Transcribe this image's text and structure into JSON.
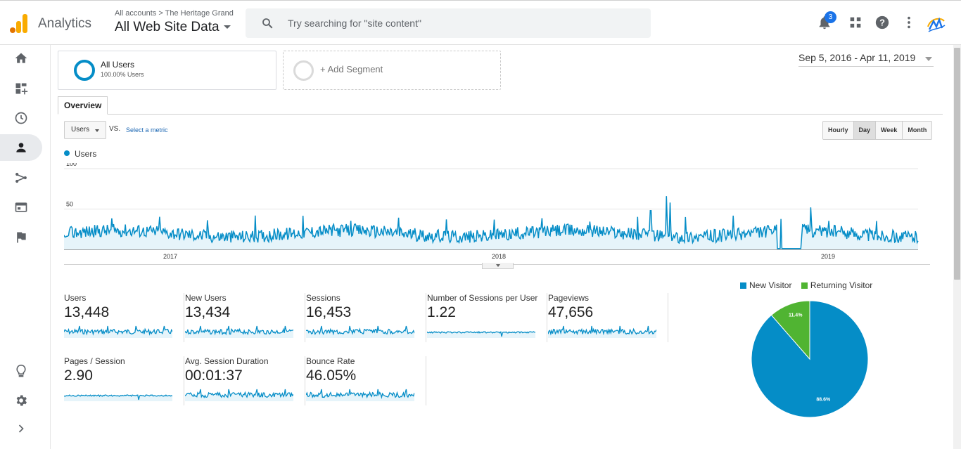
{
  "header": {
    "brand": "Analytics",
    "breadcrumb": "All accounts > The Heritage Grand",
    "view_name": "All Web Site Data",
    "search_placeholder": "Try searching for \"site content\"",
    "notification_count": "3"
  },
  "left_nav": {
    "items": [
      "home-icon",
      "customization-icon",
      "realtime-icon",
      "audience-icon",
      "acquisition-icon",
      "behavior-icon",
      "conversions-icon"
    ],
    "bottom": [
      "discover-icon",
      "admin-icon",
      "expand-icon"
    ]
  },
  "segments": {
    "active_name": "All Users",
    "active_sub": "100.00% Users",
    "add_label": "+ Add Segment"
  },
  "date_range": "Sep 5, 2016 - Apr 11, 2019",
  "tabs": {
    "overview": "Overview"
  },
  "controls": {
    "metric": "Users",
    "vs": "VS.",
    "select_metric": "Select a metric",
    "granularity": [
      "Hourly",
      "Day",
      "Week",
      "Month"
    ],
    "granularity_selected": "Day"
  },
  "colors": {
    "series": "#058dc7",
    "new_visitor": "#058dc7",
    "returning_visitor": "#50b432"
  },
  "chart_data": [
    {
      "type": "line",
      "series": [
        {
          "name": "Users",
          "summary": "Daily users, baseline mostly 10–40, spikes near 66 in Jun 2018 and ~52 in Oct 2018; near zero gap around Sep 2018"
        }
      ],
      "x_ticks": [
        "2017",
        "2018",
        "2019"
      ],
      "y_ticks": [
        100,
        50
      ],
      "ylim": [
        0,
        100
      ]
    },
    {
      "type": "pie",
      "slices": [
        {
          "name": "New Visitor",
          "value": 88.6,
          "label": "88.6%"
        },
        {
          "name": "Returning Visitor",
          "value": 11.4,
          "label": "11.4%"
        }
      ]
    }
  ],
  "kpis": [
    {
      "label": "Users",
      "value": "13,448"
    },
    {
      "label": "New Users",
      "value": "13,434"
    },
    {
      "label": "Sessions",
      "value": "16,453"
    },
    {
      "label": "Number of Sessions per User",
      "value": "1.22"
    },
    {
      "label": "Pageviews",
      "value": "47,656"
    },
    {
      "label": "Pages / Session",
      "value": "2.90"
    },
    {
      "label": "Avg. Session Duration",
      "value": "00:01:37"
    },
    {
      "label": "Bounce Rate",
      "value": "46.05%"
    }
  ]
}
